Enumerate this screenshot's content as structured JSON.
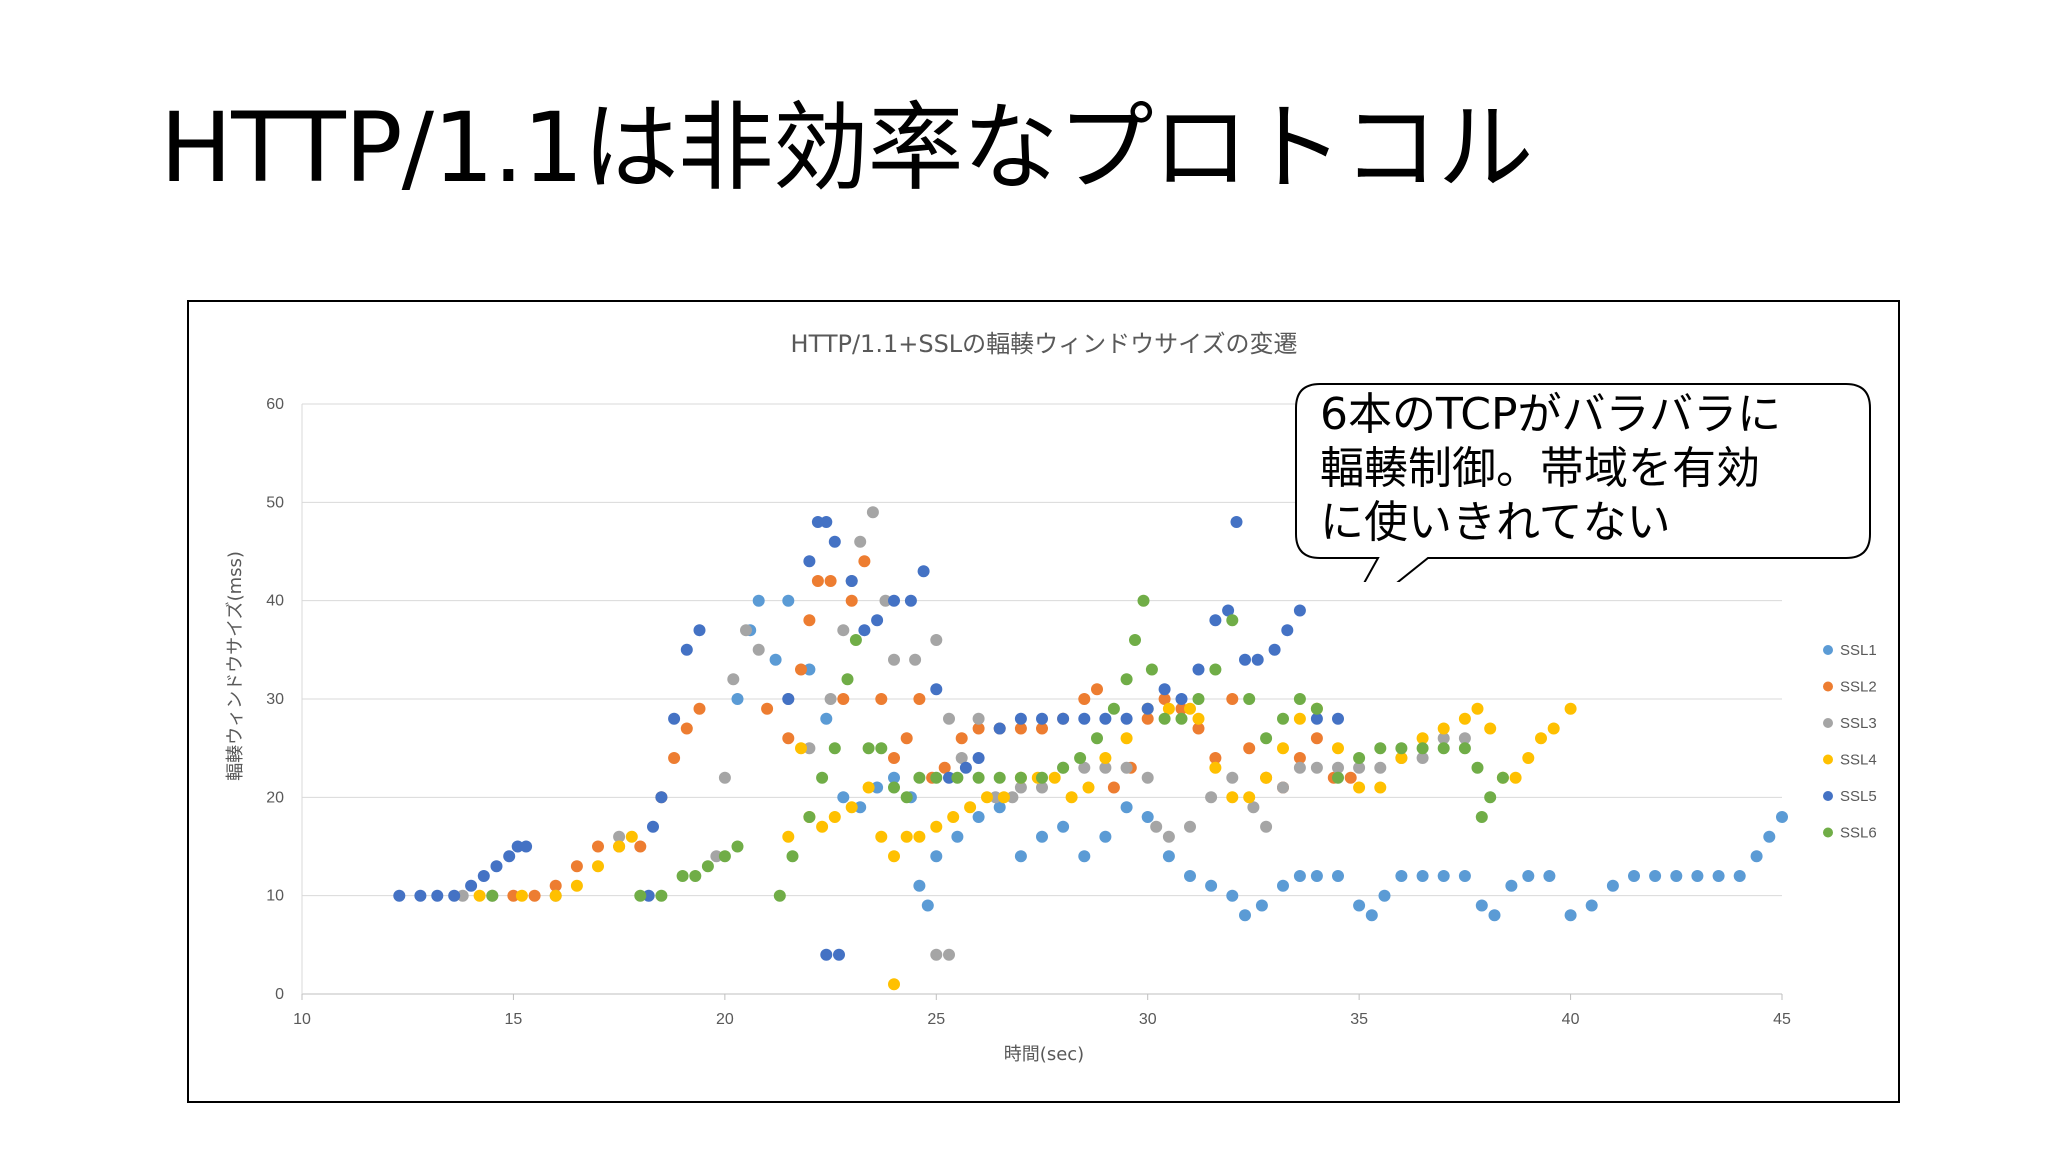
{
  "slide": {
    "title": "HTTP/1.1は非効率なプロトコル",
    "callout": "6本のTCPがバラバラに\n輻輳制御。帯域を有効\nに使いきれてない"
  },
  "chart_data": {
    "type": "scatter",
    "title": "HTTP/1.1+SSLの輻輳ウィンドウサイズの変遷",
    "xlabel": "時間(sec)",
    "ylabel": "輻輳ウィンドウサイズ(mss)",
    "xlim": [
      10,
      45
    ],
    "ylim": [
      0,
      60
    ],
    "xticks": [
      10,
      15,
      20,
      25,
      30,
      35,
      40,
      45
    ],
    "yticks": [
      0,
      10,
      20,
      30,
      40,
      50,
      60
    ],
    "grid": "horizontal",
    "legend_position": "right",
    "series": [
      {
        "name": "SSL1",
        "color": "#5B9BD5",
        "points": [
          [
            20.3,
            30
          ],
          [
            20.6,
            37
          ],
          [
            20.8,
            40
          ],
          [
            21.2,
            34
          ],
          [
            21.5,
            40
          ],
          [
            22,
            33
          ],
          [
            22.4,
            28
          ],
          [
            22.8,
            20
          ],
          [
            23.2,
            19
          ],
          [
            23.6,
            21
          ],
          [
            24,
            22
          ],
          [
            24.4,
            20
          ],
          [
            24.6,
            11
          ],
          [
            24.8,
            9
          ],
          [
            25,
            14
          ],
          [
            25.5,
            16
          ],
          [
            26,
            18
          ],
          [
            26.5,
            19
          ],
          [
            27,
            14
          ],
          [
            27.5,
            16
          ],
          [
            28,
            17
          ],
          [
            28.5,
            14
          ],
          [
            29,
            16
          ],
          [
            29.5,
            19
          ],
          [
            30,
            18
          ],
          [
            30.5,
            14
          ],
          [
            31,
            12
          ],
          [
            31.5,
            11
          ],
          [
            32,
            10
          ],
          [
            32.3,
            8
          ],
          [
            32.7,
            9
          ],
          [
            33.2,
            11
          ],
          [
            33.6,
            12
          ],
          [
            34,
            12
          ],
          [
            34.5,
            12
          ],
          [
            35,
            9
          ],
          [
            35.3,
            8
          ],
          [
            35.6,
            10
          ],
          [
            36,
            12
          ],
          [
            36.5,
            12
          ],
          [
            37,
            12
          ],
          [
            37.5,
            12
          ],
          [
            37.9,
            9
          ],
          [
            38.2,
            8
          ],
          [
            38.6,
            11
          ],
          [
            39,
            12
          ],
          [
            39.5,
            12
          ],
          [
            40,
            8
          ],
          [
            40.5,
            9
          ],
          [
            41,
            11
          ],
          [
            41.5,
            12
          ],
          [
            42,
            12
          ],
          [
            42.5,
            12
          ],
          [
            43,
            12
          ],
          [
            43.5,
            12
          ],
          [
            44,
            12
          ],
          [
            44.4,
            14
          ],
          [
            44.7,
            16
          ],
          [
            45,
            18
          ]
        ]
      },
      {
        "name": "SSL2",
        "color": "#ED7D31",
        "points": [
          [
            15,
            10
          ],
          [
            15.5,
            10
          ],
          [
            16,
            11
          ],
          [
            16.5,
            13
          ],
          [
            17,
            15
          ],
          [
            17.5,
            15
          ],
          [
            18,
            15
          ],
          [
            18.5,
            20
          ],
          [
            18.8,
            24
          ],
          [
            19.1,
            27
          ],
          [
            19.4,
            29
          ],
          [
            21,
            29
          ],
          [
            21.5,
            26
          ],
          [
            21.8,
            33
          ],
          [
            22,
            38
          ],
          [
            22.2,
            42
          ],
          [
            22.5,
            42
          ],
          [
            22.8,
            30
          ],
          [
            23,
            40
          ],
          [
            23.3,
            44
          ],
          [
            23.7,
            30
          ],
          [
            24,
            24
          ],
          [
            24.3,
            26
          ],
          [
            24.6,
            30
          ],
          [
            24.9,
            22
          ],
          [
            25.2,
            23
          ],
          [
            25.6,
            26
          ],
          [
            26,
            27
          ],
          [
            26.5,
            27
          ],
          [
            27,
            27
          ],
          [
            27.5,
            27
          ],
          [
            28,
            28
          ],
          [
            28.5,
            30
          ],
          [
            28.8,
            31
          ],
          [
            29.2,
            21
          ],
          [
            29.6,
            23
          ],
          [
            30,
            28
          ],
          [
            30.4,
            30
          ],
          [
            30.8,
            29
          ],
          [
            31.2,
            27
          ],
          [
            31.6,
            24
          ],
          [
            32,
            30
          ],
          [
            32.4,
            25
          ],
          [
            32.8,
            22
          ],
          [
            33.2,
            21
          ],
          [
            33.6,
            24
          ],
          [
            34,
            26
          ],
          [
            34.4,
            22
          ],
          [
            34.8,
            22
          ]
        ]
      },
      {
        "name": "SSL3",
        "color": "#A5A5A5",
        "points": [
          [
            13.8,
            10
          ],
          [
            14.5,
            10
          ],
          [
            16,
            10
          ],
          [
            17.5,
            16
          ],
          [
            19.8,
            14
          ],
          [
            20,
            22
          ],
          [
            20.2,
            32
          ],
          [
            20.5,
            37
          ],
          [
            20.8,
            35
          ],
          [
            21.5,
            30
          ],
          [
            22,
            25
          ],
          [
            22.5,
            30
          ],
          [
            22.8,
            37
          ],
          [
            23,
            42
          ],
          [
            23.2,
            46
          ],
          [
            23.5,
            49
          ],
          [
            23.8,
            40
          ],
          [
            24,
            34
          ],
          [
            24.5,
            34
          ],
          [
            25,
            36
          ],
          [
            25.3,
            28
          ],
          [
            25.6,
            24
          ],
          [
            26,
            28
          ],
          [
            26.4,
            20
          ],
          [
            26.8,
            20
          ],
          [
            27,
            21
          ],
          [
            27.5,
            21
          ],
          [
            28,
            23
          ],
          [
            28.5,
            23
          ],
          [
            29,
            23
          ],
          [
            29.5,
            23
          ],
          [
            30,
            22
          ],
          [
            30.2,
            17
          ],
          [
            30.5,
            16
          ],
          [
            31,
            17
          ],
          [
            31.5,
            20
          ],
          [
            32,
            22
          ],
          [
            32.5,
            19
          ],
          [
            32.8,
            17
          ],
          [
            33.2,
            21
          ],
          [
            33.6,
            23
          ],
          [
            34,
            23
          ],
          [
            34.5,
            23
          ],
          [
            35,
            23
          ],
          [
            35.5,
            23
          ],
          [
            36,
            24
          ],
          [
            36.5,
            24
          ],
          [
            37,
            26
          ],
          [
            37.5,
            26
          ],
          [
            25,
            4
          ],
          [
            25.3,
            4
          ]
        ]
      },
      {
        "name": "SSL4",
        "color": "#FFC000",
        "points": [
          [
            14.2,
            10
          ],
          [
            15.2,
            10
          ],
          [
            16,
            10
          ],
          [
            16.5,
            11
          ],
          [
            17,
            13
          ],
          [
            17.5,
            15
          ],
          [
            17.8,
            16
          ],
          [
            21.5,
            16
          ],
          [
            21.8,
            25
          ],
          [
            22,
            18
          ],
          [
            22.3,
            17
          ],
          [
            22.6,
            18
          ],
          [
            23,
            19
          ],
          [
            23.4,
            21
          ],
          [
            23.7,
            16
          ],
          [
            24,
            14
          ],
          [
            24.3,
            16
          ],
          [
            24.6,
            16
          ],
          [
            25,
            17
          ],
          [
            25.4,
            18
          ],
          [
            25.8,
            19
          ],
          [
            26.2,
            20
          ],
          [
            26.6,
            20
          ],
          [
            27,
            22
          ],
          [
            27.4,
            22
          ],
          [
            27.8,
            22
          ],
          [
            28.2,
            20
          ],
          [
            28.6,
            21
          ],
          [
            29,
            24
          ],
          [
            29.5,
            26
          ],
          [
            30,
            29
          ],
          [
            30.5,
            29
          ],
          [
            31,
            29
          ],
          [
            31.2,
            28
          ],
          [
            31.6,
            23
          ],
          [
            32,
            20
          ],
          [
            32.4,
            20
          ],
          [
            32.8,
            22
          ],
          [
            33.2,
            25
          ],
          [
            33.6,
            28
          ],
          [
            34,
            29
          ],
          [
            34.5,
            25
          ],
          [
            35,
            21
          ],
          [
            35.5,
            21
          ],
          [
            36,
            24
          ],
          [
            36.5,
            26
          ],
          [
            37,
            27
          ],
          [
            37.5,
            28
          ],
          [
            37.8,
            29
          ],
          [
            38.1,
            27
          ],
          [
            38.4,
            22
          ],
          [
            38.7,
            22
          ],
          [
            39,
            24
          ],
          [
            39.3,
            26
          ],
          [
            39.6,
            27
          ],
          [
            40,
            29
          ],
          [
            24,
            1
          ]
        ]
      },
      {
        "name": "SSL5",
        "color": "#4472C4",
        "points": [
          [
            12.3,
            10
          ],
          [
            12.8,
            10
          ],
          [
            13.2,
            10
          ],
          [
            13.6,
            10
          ],
          [
            14,
            11
          ],
          [
            14.3,
            12
          ],
          [
            14.6,
            13
          ],
          [
            14.9,
            14
          ],
          [
            15.1,
            15
          ],
          [
            15.3,
            15
          ],
          [
            18.2,
            10
          ],
          [
            18.3,
            17
          ],
          [
            18.5,
            20
          ],
          [
            18.8,
            28
          ],
          [
            19.1,
            35
          ],
          [
            19.4,
            37
          ],
          [
            21.5,
            30
          ],
          [
            22,
            44
          ],
          [
            22.2,
            48
          ],
          [
            22.4,
            48
          ],
          [
            22.6,
            46
          ],
          [
            23,
            42
          ],
          [
            23.3,
            37
          ],
          [
            23.6,
            38
          ],
          [
            24,
            40
          ],
          [
            24.4,
            40
          ],
          [
            24.7,
            43
          ],
          [
            25,
            31
          ],
          [
            25.3,
            22
          ],
          [
            25.7,
            23
          ],
          [
            26,
            24
          ],
          [
            26.5,
            27
          ],
          [
            27,
            28
          ],
          [
            27.5,
            28
          ],
          [
            28,
            28
          ],
          [
            28.5,
            28
          ],
          [
            29,
            28
          ],
          [
            29.5,
            28
          ],
          [
            30,
            29
          ],
          [
            30.4,
            31
          ],
          [
            30.8,
            30
          ],
          [
            31.2,
            33
          ],
          [
            31.6,
            38
          ],
          [
            31.9,
            39
          ],
          [
            32.1,
            48
          ],
          [
            32.3,
            34
          ],
          [
            32.6,
            34
          ],
          [
            33,
            35
          ],
          [
            33.3,
            37
          ],
          [
            33.6,
            39
          ],
          [
            34,
            28
          ],
          [
            34.5,
            28
          ],
          [
            22.4,
            4
          ],
          [
            22.7,
            4
          ]
        ]
      },
      {
        "name": "SSL6",
        "color": "#70AD47",
        "points": [
          [
            14.5,
            10
          ],
          [
            18,
            10
          ],
          [
            18.5,
            10
          ],
          [
            19,
            12
          ],
          [
            19.3,
            12
          ],
          [
            19.6,
            13
          ],
          [
            20,
            14
          ],
          [
            20.3,
            15
          ],
          [
            21.3,
            10
          ],
          [
            21.6,
            14
          ],
          [
            22,
            18
          ],
          [
            22.3,
            22
          ],
          [
            22.6,
            25
          ],
          [
            22.9,
            32
          ],
          [
            23.1,
            36
          ],
          [
            23.4,
            25
          ],
          [
            23.7,
            25
          ],
          [
            24,
            21
          ],
          [
            24.3,
            20
          ],
          [
            24.6,
            22
          ],
          [
            25,
            22
          ],
          [
            25.5,
            22
          ],
          [
            26,
            22
          ],
          [
            26.5,
            22
          ],
          [
            27,
            22
          ],
          [
            27.5,
            22
          ],
          [
            28,
            23
          ],
          [
            28.4,
            24
          ],
          [
            28.8,
            26
          ],
          [
            29.2,
            29
          ],
          [
            29.5,
            32
          ],
          [
            29.7,
            36
          ],
          [
            29.9,
            40
          ],
          [
            30.1,
            33
          ],
          [
            30.4,
            28
          ],
          [
            30.8,
            28
          ],
          [
            31.2,
            30
          ],
          [
            31.6,
            33
          ],
          [
            32,
            38
          ],
          [
            32.4,
            30
          ],
          [
            32.8,
            26
          ],
          [
            33.2,
            28
          ],
          [
            33.6,
            30
          ],
          [
            34,
            29
          ],
          [
            34.5,
            22
          ],
          [
            35,
            24
          ],
          [
            35.5,
            25
          ],
          [
            36,
            25
          ],
          [
            36.5,
            25
          ],
          [
            37,
            25
          ],
          [
            37.5,
            25
          ],
          [
            37.8,
            23
          ],
          [
            37.9,
            18
          ],
          [
            38.1,
            20
          ],
          [
            38.4,
            22
          ]
        ]
      }
    ]
  }
}
